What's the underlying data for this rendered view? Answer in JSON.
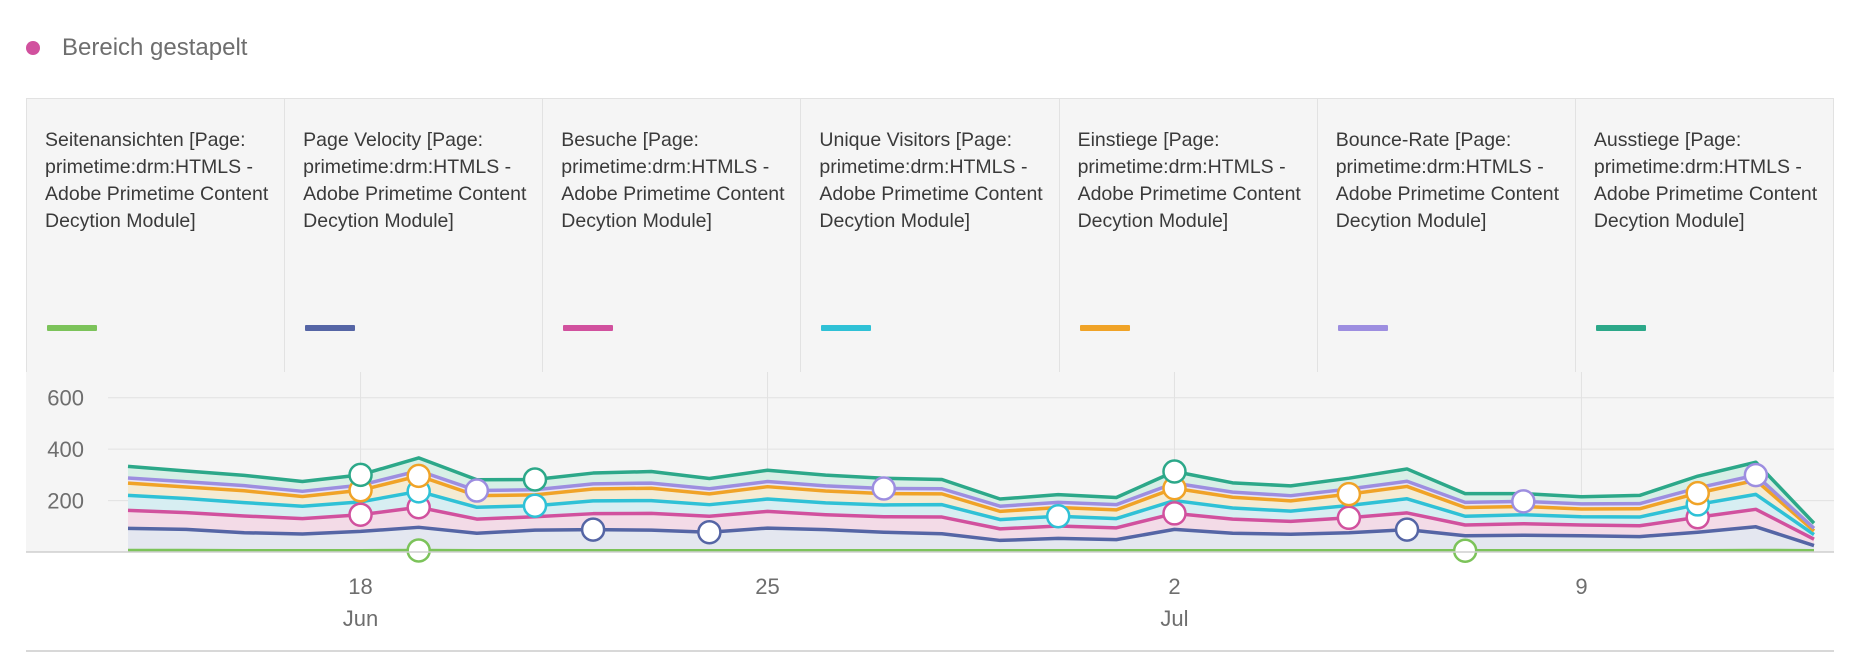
{
  "header": {
    "title": "Bereich gestapelt",
    "dot_color": "#d1519e"
  },
  "chart_data": {
    "type": "area",
    "stacked": true,
    "title": "Bereich gestapelt",
    "x": [
      "Jun 14",
      "Jun 15",
      "Jun 16",
      "Jun 17",
      "Jun 18",
      "Jun 19",
      "Jun 20",
      "Jun 21",
      "Jun 22",
      "Jun 23",
      "Jun 24",
      "Jun 25",
      "Jun 26",
      "Jun 27",
      "Jun 28",
      "Jun 29",
      "Jun 30",
      "Jul 1",
      "Jul 2",
      "Jul 3",
      "Jul 4",
      "Jul 5",
      "Jul 6",
      "Jul 7",
      "Jul 8",
      "Jul 9",
      "Jul 10",
      "Jul 11",
      "Jul 12",
      "Jul 13"
    ],
    "y_ticks": [
      "600",
      "400",
      "200"
    ],
    "ylim": [
      0,
      700
    ],
    "x_ticks": [
      {
        "day": "18",
        "month": "Jun",
        "index": 4
      },
      {
        "day": "25",
        "month": "",
        "index": 11
      },
      {
        "day": "2",
        "month": "Jul",
        "index": 18
      },
      {
        "day": "9",
        "month": "",
        "index": 25
      }
    ],
    "series": [
      {
        "name": "Seitenansichten [Page: primetime:drm:HTMLS - Adobe Primetime Content Decytion Module]",
        "color": "#7cc35a",
        "values": [
          6,
          6,
          5,
          5,
          5,
          6,
          5,
          5,
          5,
          5,
          5,
          5,
          5,
          5,
          5,
          5,
          5,
          5,
          5,
          5,
          5,
          5,
          5,
          5,
          5,
          5,
          5,
          5,
          6,
          5
        ]
      },
      {
        "name": "Page Velocity [Page: primetime:drm:HTMLS - Adobe Primetime Content Decytion Module]",
        "color": "#5565a5",
        "values": [
          86,
          82,
          70,
          65,
          75,
          90,
          68,
          80,
          82,
          80,
          72,
          88,
          82,
          72,
          66,
          40,
          48,
          43,
          83,
          68,
          64,
          70,
          82,
          58,
          60,
          58,
          55,
          72,
          92,
          20
        ]
      },
      {
        "name": "Besuche [Page: primetime:drm:HTMLS - Adobe Primetime Content Decytion Module]",
        "color": "#d1519e",
        "values": [
          70,
          65,
          65,
          60,
          65,
          78,
          55,
          52,
          62,
          65,
          62,
          65,
          58,
          60,
          65,
          45,
          48,
          46,
          62,
          55,
          50,
          58,
          65,
          42,
          45,
          42,
          42,
          58,
          68,
          25
        ]
      },
      {
        "name": "Unique Visitors [Page: primetime:drm:HTMLS - Adobe Primetime Content Decytion Module]",
        "color": "#2fc1d6",
        "values": [
          58,
          55,
          52,
          48,
          50,
          62,
          46,
          43,
          50,
          50,
          45,
          48,
          46,
          46,
          48,
          36,
          38,
          36,
          50,
          43,
          40,
          48,
          55,
          34,
          35,
          32,
          34,
          50,
          58,
          18
        ]
      },
      {
        "name": "Einstiege [Page: primetime:drm:HTMLS - Adobe Primetime Content Decytion Module]",
        "color": "#f0a327",
        "values": [
          48,
          45,
          46,
          38,
          45,
          60,
          45,
          42,
          46,
          48,
          42,
          48,
          46,
          44,
          42,
          32,
          34,
          34,
          48,
          42,
          40,
          44,
          48,
          34,
          32,
          30,
          32,
          44,
          55,
          14
        ]
      },
      {
        "name": "Bounce-Rate [Page: primetime:drm:HTMLS - Adobe Primetime Content Decytion Module]",
        "color": "#9d8ee0",
        "values": [
          20,
          20,
          20,
          20,
          20,
          20,
          20,
          20,
          20,
          20,
          20,
          20,
          20,
          20,
          20,
          20,
          20,
          20,
          20,
          20,
          20,
          20,
          20,
          20,
          20,
          20,
          20,
          20,
          20,
          10
        ]
      },
      {
        "name": "Ausstiege [Page: primetime:drm:HTMLS - Adobe Primetime Content Decytion Module]",
        "color": "#2ca889",
        "values": [
          45,
          42,
          40,
          38,
          40,
          50,
          42,
          40,
          42,
          45,
          40,
          44,
          42,
          40,
          36,
          28,
          30,
          28,
          45,
          36,
          38,
          42,
          48,
          34,
          30,
          28,
          32,
          46,
          50,
          20
        ]
      }
    ],
    "grid": true
  },
  "series_colors": {
    "area": [
      "#e4f0dc",
      "#e4e7f0",
      "#f3dbe7",
      "#d7eef2",
      "#f5ebd3",
      "#e9e5f4",
      "#d7efe6"
    ]
  }
}
